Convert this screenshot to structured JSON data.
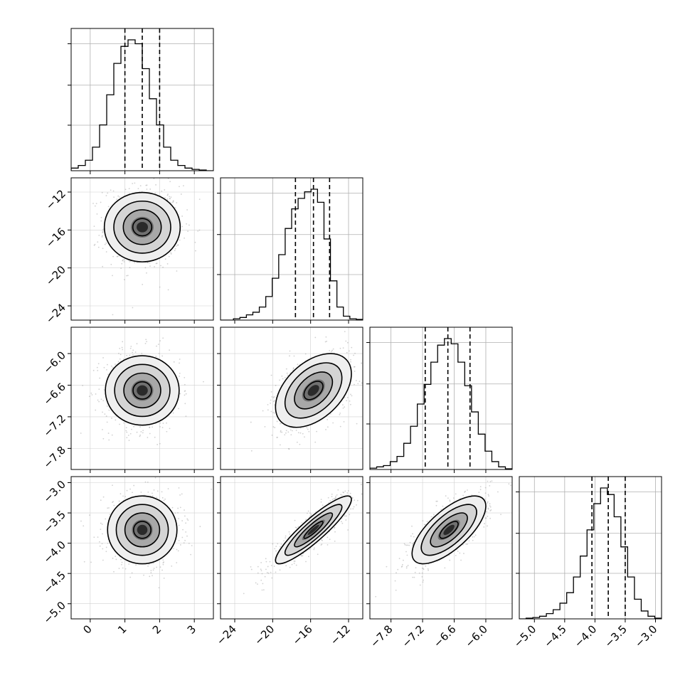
{
  "chart_data": {
    "type": "corner",
    "title": "",
    "parameters": [
      {
        "range": [
          -0.55,
          3.55
        ],
        "ticks": [
          0,
          1,
          2,
          3
        ],
        "tick_labels": [
          "0",
          "1",
          "2",
          "3"
        ],
        "mean": 1.5,
        "std": 0.5,
        "quantiles": [
          1.0,
          1.5,
          2.0
        ],
        "histogram": [
          0.02,
          0.04,
          0.08,
          0.18,
          0.35,
          0.58,
          0.82,
          0.95,
          1.0,
          0.97,
          0.78,
          0.55,
          0.35,
          0.18,
          0.08,
          0.04,
          0.02,
          0.01,
          0.005,
          0.0
        ]
      },
      {
        "range": [
          -25.5,
          -10.5
        ],
        "ticks": [
          -24,
          -20,
          -16,
          -12
        ],
        "tick_labels": [
          "−24",
          "−20",
          "−16",
          "−12"
        ],
        "mean": -15.7,
        "std": 2.0,
        "quantiles": [
          -17.6,
          -15.7,
          -14.0
        ],
        "histogram": [
          0.0,
          0.0,
          0.01,
          0.02,
          0.04,
          0.06,
          0.1,
          0.18,
          0.32,
          0.5,
          0.7,
          0.85,
          0.93,
          0.98,
          1.0,
          0.9,
          0.62,
          0.3,
          0.1,
          0.03,
          0.01,
          0.005
        ]
      },
      {
        "range": [
          -8.2,
          -5.5
        ],
        "ticks": [
          -7.8,
          -7.2,
          -6.6,
          -6.0
        ],
        "tick_labels": [
          "−7.8",
          "−7.2",
          "−6.6",
          "−6.0"
        ],
        "mean": -6.7,
        "std": 0.35,
        "quantiles": [
          -7.15,
          -6.72,
          -6.3
        ],
        "histogram": [
          0.01,
          0.02,
          0.03,
          0.06,
          0.1,
          0.2,
          0.33,
          0.5,
          0.65,
          0.82,
          0.95,
          1.0,
          0.96,
          0.82,
          0.64,
          0.44,
          0.27,
          0.14,
          0.06,
          0.02,
          0.005
        ]
      },
      {
        "range": [
          -5.25,
          -2.9
        ],
        "ticks": [
          -5.0,
          -4.5,
          -4.0,
          -3.5,
          -3.0
        ],
        "tick_labels": [
          "−5.0",
          "−4.5",
          "−4.0",
          "−3.5",
          "−3.0"
        ],
        "mean": -3.78,
        "std": 0.28,
        "quantiles": [
          -4.05,
          -3.78,
          -3.5
        ],
        "histogram": [
          0.0,
          0.005,
          0.01,
          0.02,
          0.04,
          0.07,
          0.12,
          0.2,
          0.32,
          0.48,
          0.68,
          0.88,
          1.0,
          0.95,
          0.78,
          0.55,
          0.32,
          0.15,
          0.06,
          0.02,
          0.005
        ]
      }
    ],
    "correlations": {
      "1-0": 0.0,
      "2-0": 0.0,
      "2-1": 0.45,
      "3-0": 0.0,
      "3-1": 0.9,
      "3-2": 0.7
    },
    "grid": true,
    "contours": true,
    "quantile_lines": "dashed"
  }
}
